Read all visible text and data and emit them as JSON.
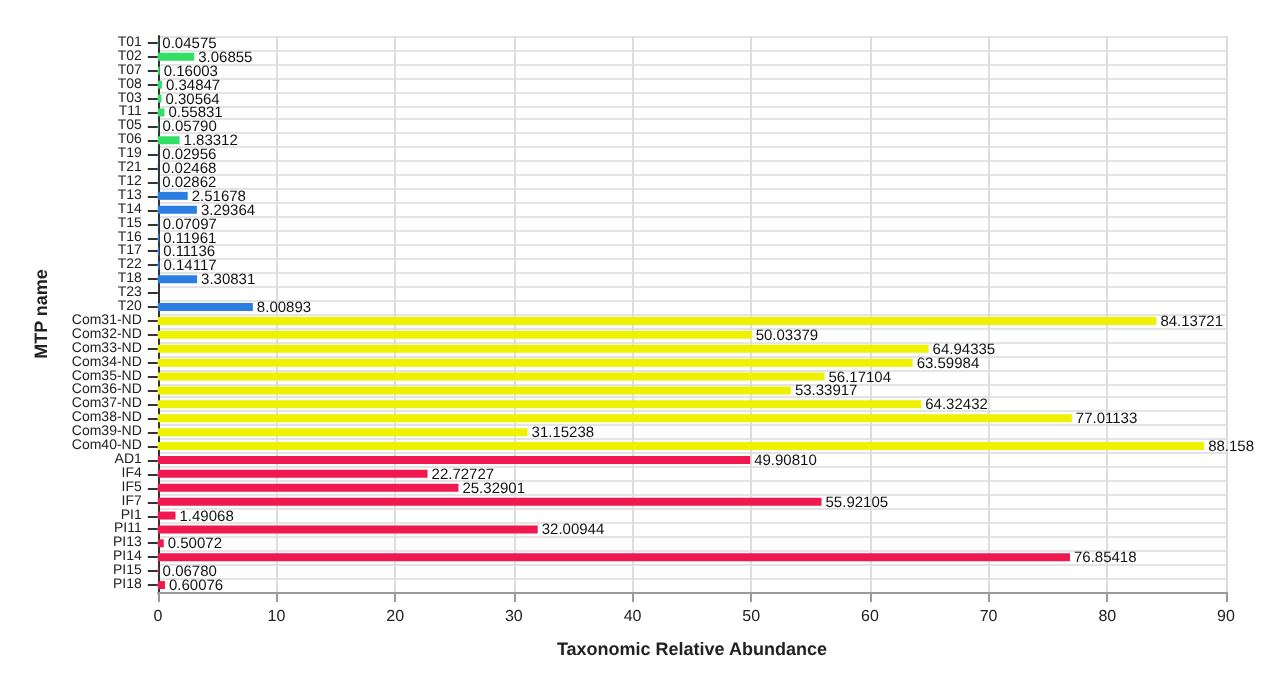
{
  "chart_data": {
    "type": "bar",
    "orientation": "horizontal",
    "xlabel": "Taxonomic Relative Abundance",
    "ylabel": "MTP name",
    "categories": [
      "T01",
      "T02",
      "T07",
      "T08",
      "T03",
      "T11",
      "T05",
      "T06",
      "T19",
      "T21",
      "T12",
      "T13",
      "T14",
      "T15",
      "T16",
      "T17",
      "T22",
      "T18",
      "T23",
      "T20",
      "Com31-ND",
      "Com32-ND",
      "Com33-ND",
      "Com34-ND",
      "Com35-ND",
      "Com36-ND",
      "Com37-ND",
      "Com38-ND",
      "Com39-ND",
      "Com40-ND",
      "AD1",
      "IF4",
      "IF5",
      "IF7",
      "PI1",
      "PI11",
      "PI13",
      "PI14",
      "PI15",
      "PI18"
    ],
    "values": [
      0.04575,
      3.06855,
      0.16003,
      0.34847,
      0.30564,
      0.55831,
      0.0579,
      1.83312,
      0.02956,
      0.02468,
      0.02862,
      2.51678,
      3.29364,
      0.07097,
      0.11961,
      0.11136,
      0.14117,
      3.30831,
      null,
      8.00893,
      84.13721,
      50.03379,
      64.94335,
      63.59984,
      56.17104,
      53.33917,
      64.32432,
      77.01133,
      31.15238,
      88.158,
      49.9081,
      22.72727,
      25.32901,
      55.92105,
      1.49068,
      32.00944,
      0.50072,
      76.85418,
      0.0678,
      0.60076
    ],
    "value_labels": [
      "0.04575",
      "3.06855",
      "0.16003",
      "0.34847",
      "0.30564",
      "0.55831",
      "0.05790",
      "1.83312",
      "0.02956",
      "0.02468",
      "0.02862",
      "2.51678",
      "3.29364",
      "0.07097",
      "0.11961",
      "0.11136",
      "0.14117",
      "3.30831",
      null,
      "8.00893",
      "84.13721",
      "50.03379",
      "64.94335",
      "63.59984",
      "56.17104",
      "53.33917",
      "64.32432",
      "77.01133",
      "31.15238",
      "88.158",
      "49.90810",
      "22.72727",
      "25.32901",
      "55.92105",
      "1.49068",
      "32.00944",
      "0.50072",
      "76.85418",
      "0.06780",
      "0.60076"
    ],
    "colors": [
      "#33e066",
      "#33e066",
      "#33e066",
      "#33e066",
      "#33e066",
      "#33e066",
      "#33e066",
      "#33e066",
      "#2a7de1",
      "#2a7de1",
      "#2a7de1",
      "#2a7de1",
      "#2a7de1",
      "#2a7de1",
      "#2a7de1",
      "#2a7de1",
      "#2a7de1",
      "#2a7de1",
      "#2a7de1",
      "#2a7de1",
      "#eef200",
      "#eef200",
      "#eef200",
      "#eef200",
      "#eef200",
      "#eef200",
      "#eef200",
      "#eef200",
      "#eef200",
      "#eef200",
      "#f0194f",
      "#f0194f",
      "#f0194f",
      "#f0194f",
      "#f0194f",
      "#f0194f",
      "#f0194f",
      "#f0194f",
      "#f0194f",
      "#f0194f"
    ],
    "xlim": [
      0,
      90
    ],
    "xticks": [
      0,
      10,
      20,
      30,
      40,
      50,
      60,
      70,
      80,
      90
    ],
    "grid": true
  }
}
